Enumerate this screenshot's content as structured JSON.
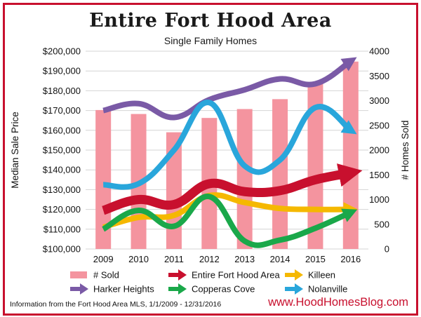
{
  "title": "Entire Fort Hood Area",
  "subtitle": "Single Family Homes",
  "footer": {
    "source": "Information from the Fort Hood Area MLS, 1/1/2009 - 12/31/2016",
    "website": "www.HoodHomesBlog.com"
  },
  "chart_data": {
    "type": "bar+line",
    "categories": [
      "2009",
      "2010",
      "2011",
      "2012",
      "2013",
      "2014",
      "2015",
      "2016"
    ],
    "ylabel_left": "Median Sale Price",
    "ylabel_right": "# Homes Sold",
    "ylim_left": [
      100000,
      200000
    ],
    "ylim_right": [
      0,
      4000
    ],
    "yticks_left": [
      "$100,000",
      "$110,000",
      "$120,000",
      "$130,000",
      "$140,000",
      "$150,000",
      "$160,000",
      "$170,000",
      "$180,000",
      "$190,000",
      "$200,000"
    ],
    "yticks_right": [
      "0",
      "500",
      "1000",
      "1500",
      "2000",
      "2500",
      "3000",
      "3500",
      "4000"
    ],
    "grid": true,
    "legend_position": "bottom",
    "bars": {
      "name": "# Sold",
      "axis": "right",
      "color": "#f4949f",
      "values": [
        2810,
        2730,
        2360,
        2650,
        2830,
        3030,
        3370,
        3790
      ]
    },
    "series": [
      {
        "name": "Harker Heights",
        "color": "#7a5aa6",
        "axis": "left",
        "values": [
          170000,
          173500,
          166500,
          175500,
          180500,
          186000,
          183500,
          195000
        ]
      },
      {
        "name": "Nolanville",
        "color": "#29a6db",
        "axis": "left",
        "values": [
          132500,
          133000,
          150000,
          174000,
          142000,
          145000,
          171500,
          160000
        ]
      },
      {
        "name": "Entire Fort Hood Area",
        "color": "#c8102e",
        "axis": "left",
        "values": [
          119500,
          125000,
          122500,
          133000,
          129000,
          129500,
          135000,
          138500
        ]
      },
      {
        "name": "Killeen",
        "color": "#f5b800",
        "axis": "left",
        "values": [
          111000,
          116000,
          117000,
          127000,
          123500,
          120500,
          120000,
          120000
        ]
      },
      {
        "name": "Copperas Cove",
        "color": "#1aa84a",
        "axis": "left",
        "values": [
          110000,
          119500,
          111500,
          126500,
          104000,
          104500,
          110500,
          118500
        ]
      }
    ]
  }
}
